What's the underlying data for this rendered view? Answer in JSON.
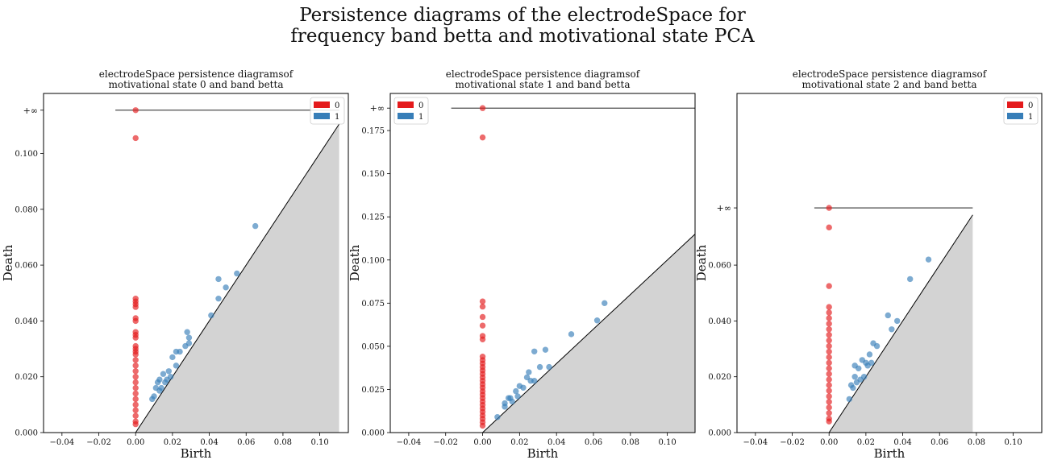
{
  "figure": {
    "title_line1": "Persistence diagrams of the electrodeSpace for",
    "title_line2": "frequency band betta and motivational state PCA"
  },
  "colors": {
    "h0": "#e41a1c",
    "h1": "#377eb8",
    "diagonal_fill": "#d3d3d3"
  },
  "chart_data": [
    {
      "type": "scatter",
      "title_line1": "electrodeSpace persistence diagramsof",
      "title_line2": "motivational state 0 and band betta",
      "xlabel": "Birth",
      "ylabel": "Death",
      "xlim": [
        -0.05,
        0.1155
      ],
      "ylim": [
        0.0,
        0.1215
      ],
      "xticks": [
        -0.04,
        -0.02,
        0.0,
        0.02,
        0.04,
        0.06,
        0.08,
        0.1
      ],
      "xtick_labels": [
        "−0.04",
        "−0.02",
        "0.00",
        "0.02",
        "0.04",
        "0.06",
        "0.08",
        "0.10"
      ],
      "yticks": [
        0.0,
        0.02,
        0.04,
        0.06,
        0.08,
        0.1
      ],
      "ytick_labels": [
        "0.000",
        "0.020",
        "0.040",
        "0.060",
        "0.080",
        "0.100"
      ],
      "inf_value": 0.1155,
      "inf_label": "+∞",
      "diagonal_end": 0.1105,
      "inf_line": [
        -0.011,
        0.1105
      ],
      "legend_position": "top-right",
      "series": [
        {
          "name": "0",
          "color": "#e41a1c",
          "points": [
            [
              0,
              0.1155
            ],
            [
              0,
              0.1055
            ],
            [
              0,
              0.048
            ],
            [
              0,
              0.047
            ],
            [
              0,
              0.046
            ],
            [
              0,
              0.045
            ],
            [
              0,
              0.041
            ],
            [
              0,
              0.04
            ],
            [
              0,
              0.036
            ],
            [
              0,
              0.035
            ],
            [
              0,
              0.034
            ],
            [
              0,
              0.031
            ],
            [
              0,
              0.03
            ],
            [
              0,
              0.029
            ],
            [
              0,
              0.028
            ],
            [
              0,
              0.026
            ],
            [
              0,
              0.024
            ],
            [
              0,
              0.022
            ],
            [
              0,
              0.02
            ],
            [
              0,
              0.018
            ],
            [
              0,
              0.016
            ],
            [
              0,
              0.014
            ],
            [
              0,
              0.012
            ],
            [
              0,
              0.01
            ],
            [
              0,
              0.008
            ],
            [
              0,
              0.006
            ],
            [
              0,
              0.004
            ],
            [
              0,
              0.003
            ]
          ]
        },
        {
          "name": "1",
          "color": "#377eb8",
          "points": [
            [
              0.065,
              0.074
            ],
            [
              0.045,
              0.055
            ],
            [
              0.055,
              0.057
            ],
            [
              0.049,
              0.052
            ],
            [
              0.045,
              0.048
            ],
            [
              0.041,
              0.042
            ],
            [
              0.028,
              0.036
            ],
            [
              0.029,
              0.034
            ],
            [
              0.024,
              0.029
            ],
            [
              0.022,
              0.029
            ],
            [
              0.027,
              0.031
            ],
            [
              0.029,
              0.032
            ],
            [
              0.02,
              0.027
            ],
            [
              0.018,
              0.022
            ],
            [
              0.015,
              0.021
            ],
            [
              0.017,
              0.019
            ],
            [
              0.013,
              0.019
            ],
            [
              0.012,
              0.018
            ],
            [
              0.011,
              0.016
            ],
            [
              0.01,
              0.013
            ],
            [
              0.014,
              0.016
            ],
            [
              0.016,
              0.018
            ],
            [
              0.019,
              0.02
            ],
            [
              0.022,
              0.024
            ],
            [
              0.013,
              0.015
            ],
            [
              0.009,
              0.012
            ]
          ]
        }
      ]
    },
    {
      "type": "scatter",
      "title_line1": "electrodeSpace persistence diagramsof",
      "title_line2": "motivational state 1 and band betta",
      "xlabel": "Birth",
      "ylabel": "Death",
      "xlim": [
        -0.05,
        0.115
      ],
      "ylim": [
        0.0,
        0.1965
      ],
      "xticks": [
        -0.04,
        -0.02,
        0.0,
        0.02,
        0.04,
        0.06,
        0.08,
        0.1
      ],
      "xtick_labels": [
        "−0.04",
        "−0.02",
        "0.00",
        "0.02",
        "0.04",
        "0.06",
        "0.08",
        "0.10"
      ],
      "yticks": [
        0.0,
        0.025,
        0.05,
        0.075,
        0.1,
        0.125,
        0.15,
        0.175
      ],
      "ytick_labels": [
        "0.000",
        "0.025",
        "0.050",
        "0.075",
        "0.100",
        "0.125",
        "0.150",
        "0.175"
      ],
      "inf_value": 0.188,
      "inf_label": "+∞",
      "diagonal_end": 0.115,
      "inf_line": [
        -0.017,
        0.115
      ],
      "legend_position": "top-left",
      "series": [
        {
          "name": "0",
          "color": "#e41a1c",
          "points": [
            [
              0,
              0.188
            ],
            [
              0,
              0.171
            ],
            [
              0,
              0.076
            ],
            [
              0,
              0.073
            ],
            [
              0,
              0.067
            ],
            [
              0,
              0.062
            ],
            [
              0,
              0.056
            ],
            [
              0,
              0.054
            ],
            [
              0,
              0.044
            ],
            [
              0,
              0.042
            ],
            [
              0,
              0.04
            ],
            [
              0,
              0.038
            ],
            [
              0,
              0.036
            ],
            [
              0,
              0.034
            ],
            [
              0,
              0.032
            ],
            [
              0,
              0.03
            ],
            [
              0,
              0.028
            ],
            [
              0,
              0.026
            ],
            [
              0,
              0.024
            ],
            [
              0,
              0.022
            ],
            [
              0,
              0.02
            ],
            [
              0,
              0.018
            ],
            [
              0,
              0.016
            ],
            [
              0,
              0.014
            ],
            [
              0,
              0.012
            ],
            [
              0,
              0.01
            ],
            [
              0,
              0.008
            ],
            [
              0,
              0.006
            ],
            [
              0,
              0.004
            ]
          ]
        },
        {
          "name": "1",
          "color": "#377eb8",
          "points": [
            [
              0.066,
              0.075
            ],
            [
              0.062,
              0.065
            ],
            [
              0.048,
              0.057
            ],
            [
              0.034,
              0.048
            ],
            [
              0.028,
              0.047
            ],
            [
              0.036,
              0.038
            ],
            [
              0.031,
              0.038
            ],
            [
              0.025,
              0.035
            ],
            [
              0.024,
              0.032
            ],
            [
              0.026,
              0.03
            ],
            [
              0.02,
              0.027
            ],
            [
              0.022,
              0.026
            ],
            [
              0.018,
              0.024
            ],
            [
              0.014,
              0.02
            ],
            [
              0.016,
              0.018
            ],
            [
              0.012,
              0.017
            ],
            [
              0.012,
              0.015
            ],
            [
              0.015,
              0.02
            ],
            [
              0.019,
              0.021
            ],
            [
              0.008,
              0.009
            ],
            [
              0.028,
              0.03
            ]
          ]
        }
      ]
    },
    {
      "type": "scatter",
      "title_line1": "electrodeSpace persistence diagramsof",
      "title_line2": "motivational state 2 and band betta",
      "xlabel": "Birth",
      "ylabel": "Death",
      "xlim": [
        -0.05,
        0.1155
      ],
      "ylim": [
        0.0,
        0.1215
      ],
      "xticks": [
        -0.04,
        -0.02,
        0.0,
        0.02,
        0.04,
        0.06,
        0.08,
        0.1
      ],
      "xtick_labels": [
        "−0.04",
        "−0.02",
        "0.00",
        "0.02",
        "0.04",
        "0.06",
        "0.08",
        "0.10"
      ],
      "yticks": [
        0.0,
        0.02,
        0.04,
        0.06
      ],
      "ytick_labels": [
        "0.000",
        "0.020",
        "0.040",
        "0.060"
      ],
      "inf_value": 0.0805,
      "inf_label": "+∞",
      "diagonal_end": 0.078,
      "inf_line": [
        -0.008,
        0.078
      ],
      "legend_position": "top-right",
      "series": [
        {
          "name": "0",
          "color": "#e41a1c",
          "points": [
            [
              0,
              0.0805
            ],
            [
              0,
              0.0735
            ],
            [
              0,
              0.0525
            ],
            [
              0,
              0.045
            ],
            [
              0,
              0.043
            ],
            [
              0,
              0.041
            ],
            [
              0,
              0.039
            ],
            [
              0,
              0.037
            ],
            [
              0,
              0.035
            ],
            [
              0,
              0.033
            ],
            [
              0,
              0.031
            ],
            [
              0,
              0.029
            ],
            [
              0,
              0.027
            ],
            [
              0,
              0.025
            ],
            [
              0,
              0.023
            ],
            [
              0,
              0.021
            ],
            [
              0,
              0.019
            ],
            [
              0,
              0.017
            ],
            [
              0,
              0.015
            ],
            [
              0,
              0.013
            ],
            [
              0,
              0.011
            ],
            [
              0,
              0.009
            ],
            [
              0,
              0.007
            ],
            [
              0,
              0.005
            ],
            [
              0,
              0.004
            ]
          ]
        },
        {
          "name": "1",
          "color": "#377eb8",
          "points": [
            [
              0.054,
              0.062
            ],
            [
              0.044,
              0.055
            ],
            [
              0.037,
              0.04
            ],
            [
              0.032,
              0.042
            ],
            [
              0.034,
              0.037
            ],
            [
              0.024,
              0.032
            ],
            [
              0.026,
              0.031
            ],
            [
              0.022,
              0.028
            ],
            [
              0.018,
              0.026
            ],
            [
              0.02,
              0.025
            ],
            [
              0.021,
              0.024
            ],
            [
              0.016,
              0.023
            ],
            [
              0.014,
              0.02
            ],
            [
              0.012,
              0.017
            ],
            [
              0.015,
              0.018
            ],
            [
              0.013,
              0.016
            ],
            [
              0.011,
              0.012
            ],
            [
              0.017,
              0.019
            ],
            [
              0.023,
              0.025
            ],
            [
              0.014,
              0.024
            ],
            [
              0.019,
              0.02
            ]
          ]
        }
      ]
    }
  ]
}
